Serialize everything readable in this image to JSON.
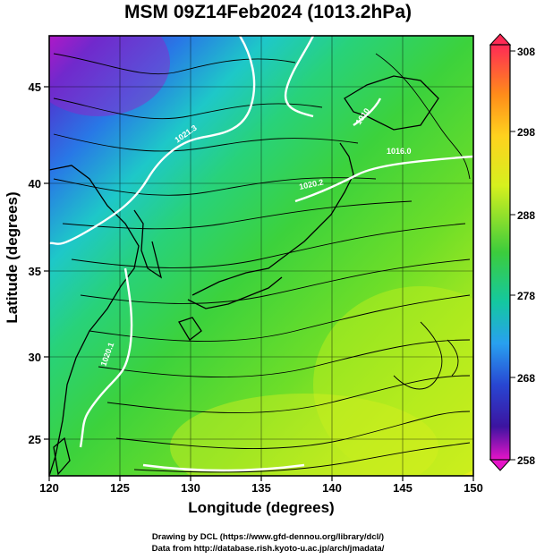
{
  "title": "MSM 09Z14Feb2024 (1013.2hPa)",
  "xaxis": {
    "label": "Longitude (degrees)",
    "ticks": [
      "120",
      "125",
      "130",
      "135",
      "140",
      "145",
      "150"
    ],
    "range": [
      120,
      150
    ]
  },
  "yaxis": {
    "label": "Latitude  (degrees)",
    "ticks": [
      "25",
      "30",
      "35",
      "40",
      "45"
    ],
    "range": [
      22.5,
      48
    ]
  },
  "colorbar": {
    "ticks": [
      "308",
      "298",
      "288",
      "278",
      "268",
      "258"
    ],
    "range": [
      258,
      308
    ],
    "colors": [
      "#ff2a55",
      "#ff8c1a",
      "#ffd21e",
      "#d6f01e",
      "#3ccc3c",
      "#14c8a0",
      "#28a0f0",
      "#2846d2",
      "#3c14a0",
      "#e614c8"
    ]
  },
  "isobars": {
    "labels": [
      "1021.3",
      "1010",
      "1016.0",
      "1020.2",
      "1020.1"
    ],
    "color": "#ffffff"
  },
  "credits": {
    "line1": "Drawing by DCL (https://www.gfd-dennou.org/library/dcl/)",
    "line2": "Data from http://database.rish.kyoto-u.ac.jp/arch/jmadata/"
  }
}
